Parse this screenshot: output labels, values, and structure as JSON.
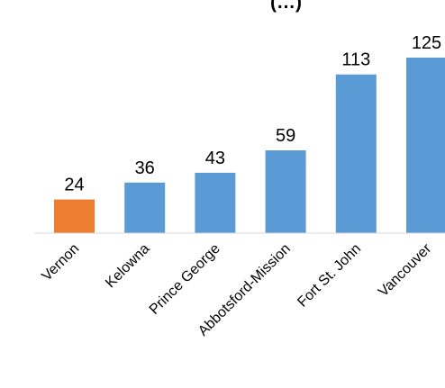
{
  "chart_data": {
    "type": "bar",
    "title_fragment": "(…)",
    "categories": [
      "Vernon",
      "Kelowna",
      "Prince George",
      "Abbotsford-Mission",
      "Fort St. John",
      "Vancouver"
    ],
    "values": [
      24,
      36,
      43,
      59,
      113,
      125
    ],
    "data_labels": [
      "24",
      "36",
      "43",
      "59",
      "113",
      "125"
    ],
    "colors": [
      "#ED7D31",
      "#5B9BD5",
      "#5B9BD5",
      "#5B9BD5",
      "#5B9BD5",
      "#5B9BD5"
    ],
    "ylim": [
      0,
      125
    ],
    "grid": false,
    "legend": "none"
  }
}
